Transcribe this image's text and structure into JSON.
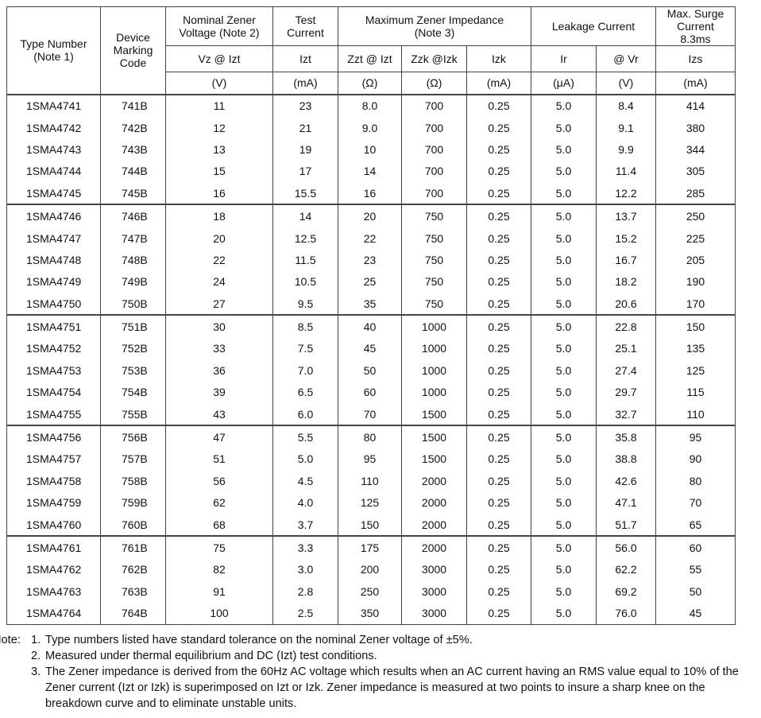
{
  "table": {
    "header": [
      [
        "Type Number\n(Note 1)",
        "Device\nMarking\nCode",
        "Nominal Zener\nVoltage (Note 2)",
        "Test\nCurrent",
        "Maximum Zener Impedance\n(Note 3)",
        "Leakage Current",
        "Max. Surge\nCurrent\n8.3ms"
      ],
      [
        "Vz @ Izt",
        "Izt",
        "Zzt @ Izt",
        "Zzk @Izk",
        "Izk",
        "Ir",
        "@ Vr",
        "Izs"
      ],
      [
        "(V)",
        "(mA)",
        "(Ω)",
        "(Ω)",
        "(mA)",
        "(μA)",
        "(V)",
        "(mA)"
      ]
    ],
    "rows": [
      [
        "1SMA4741",
        "741B",
        "11",
        "23",
        "8.0",
        "700",
        "0.25",
        "5.0",
        "8.4",
        "414"
      ],
      [
        "1SMA4742",
        "742B",
        "12",
        "21",
        "9.0",
        "700",
        "0.25",
        "5.0",
        "9.1",
        "380"
      ],
      [
        "1SMA4743",
        "743B",
        "13",
        "19",
        "10",
        "700",
        "0.25",
        "5.0",
        "9.9",
        "344"
      ],
      [
        "1SMA4744",
        "744B",
        "15",
        "17",
        "14",
        "700",
        "0.25",
        "5.0",
        "11.4",
        "305"
      ],
      [
        "1SMA4745",
        "745B",
        "16",
        "15.5",
        "16",
        "700",
        "0.25",
        "5.0",
        "12.2",
        "285"
      ],
      [
        "1SMA4746",
        "746B",
        "18",
        "14",
        "20",
        "750",
        "0.25",
        "5.0",
        "13.7",
        "250"
      ],
      [
        "1SMA4747",
        "747B",
        "20",
        "12.5",
        "22",
        "750",
        "0.25",
        "5.0",
        "15.2",
        "225"
      ],
      [
        "1SMA4748",
        "748B",
        "22",
        "11.5",
        "23",
        "750",
        "0.25",
        "5.0",
        "16.7",
        "205"
      ],
      [
        "1SMA4749",
        "749B",
        "24",
        "10.5",
        "25",
        "750",
        "0.25",
        "5.0",
        "18.2",
        "190"
      ],
      [
        "1SMA4750",
        "750B",
        "27",
        "9.5",
        "35",
        "750",
        "0.25",
        "5.0",
        "20.6",
        "170"
      ],
      [
        "1SMA4751",
        "751B",
        "30",
        "8.5",
        "40",
        "1000",
        "0.25",
        "5.0",
        "22.8",
        "150"
      ],
      [
        "1SMA4752",
        "752B",
        "33",
        "7.5",
        "45",
        "1000",
        "0.25",
        "5.0",
        "25.1",
        "135"
      ],
      [
        "1SMA4753",
        "753B",
        "36",
        "7.0",
        "50",
        "1000",
        "0.25",
        "5.0",
        "27.4",
        "125"
      ],
      [
        "1SMA4754",
        "754B",
        "39",
        "6.5",
        "60",
        "1000",
        "0.25",
        "5.0",
        "29.7",
        "115"
      ],
      [
        "1SMA4755",
        "755B",
        "43",
        "6.0",
        "70",
        "1500",
        "0.25",
        "5.0",
        "32.7",
        "110"
      ],
      [
        "1SMA4756",
        "756B",
        "47",
        "5.5",
        "80",
        "1500",
        "0.25",
        "5.0",
        "35.8",
        "95"
      ],
      [
        "1SMA4757",
        "757B",
        "51",
        "5.0",
        "95",
        "1500",
        "0.25",
        "5.0",
        "38.8",
        "90"
      ],
      [
        "1SMA4758",
        "758B",
        "56",
        "4.5",
        "110",
        "2000",
        "0.25",
        "5.0",
        "42.6",
        "80"
      ],
      [
        "1SMA4759",
        "759B",
        "62",
        "4.0",
        "125",
        "2000",
        "0.25",
        "5.0",
        "47.1",
        "70"
      ],
      [
        "1SMA4760",
        "760B",
        "68",
        "3.7",
        "150",
        "2000",
        "0.25",
        "5.0",
        "51.7",
        "65"
      ],
      [
        "1SMA4761",
        "761B",
        "75",
        "3.3",
        "175",
        "2000",
        "0.25",
        "5.0",
        "56.0",
        "60"
      ],
      [
        "1SMA4762",
        "762B",
        "82",
        "3.0",
        "200",
        "3000",
        "0.25",
        "5.0",
        "62.2",
        "55"
      ],
      [
        "1SMA4763",
        "763B",
        "91",
        "2.8",
        "250",
        "3000",
        "0.25",
        "5.0",
        "69.2",
        "50"
      ],
      [
        "1SMA4764",
        "764B",
        "100",
        "2.5",
        "350",
        "3000",
        "0.25",
        "5.0",
        "76.0",
        "45"
      ]
    ]
  },
  "notes": {
    "label": "Note:",
    "items": [
      {
        "number": "1.",
        "text": "Type numbers listed have standard tolerance on the nominal Zener voltage of ±5%."
      },
      {
        "number": "2.",
        "text": "Measured under thermal equilibrium and DC (Izt) test conditions."
      },
      {
        "number": "3.",
        "text": "The Zener impedance is derived from the 60Hz AC voltage which results when an AC current having an RMS value equal to 10% of the Zener current (Izt or Izk) is superimposed on Izt or Izk. Zener impedance is measured at two points to insure a sharp knee on the breakdown curve and to eliminate unstable units."
      }
    ]
  }
}
